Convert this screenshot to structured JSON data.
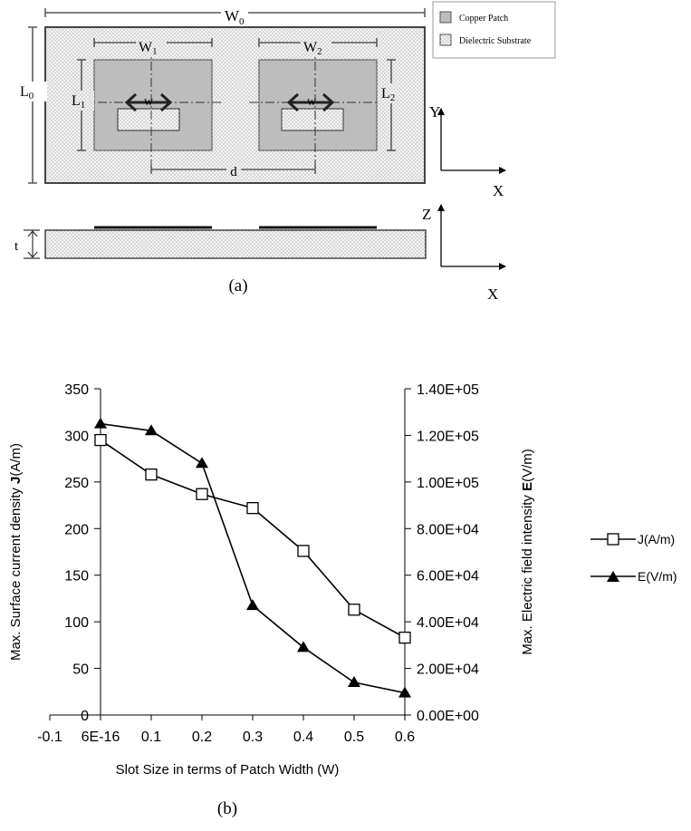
{
  "figure_a": {
    "caption": "(a)",
    "legend": [
      {
        "label": "Copper Patch",
        "fill": "#bdbdbd"
      },
      {
        "label": "Dielectric Substrate",
        "fill": "#ececec"
      }
    ],
    "dims": {
      "W0_main": "W",
      "W0_sub": "0",
      "W1_main": "W",
      "W1_sub": "1",
      "W2_main": "W",
      "W2_sub": "2",
      "L0_main": "L",
      "L0_sub": "0",
      "L1_main": "L",
      "L1_sub": "1",
      "L2_main": "L",
      "L2_sub": "2",
      "w1": "w",
      "w2": "w",
      "d": "d",
      "t": "t"
    },
    "axes_top": {
      "y": "Y",
      "x": "X"
    },
    "axes_bottom": {
      "z": "Z",
      "x": "X"
    }
  },
  "figure_b": {
    "caption": "(b)",
    "xlabel": "Slot Size in terms of Patch Width (W)",
    "ylabel_left_pre": "Max. Surface current density ",
    "ylabel_left_bold": "J",
    "ylabel_left_post": "(A/m)",
    "ylabel_right_pre": "Max. Electric field intensity ",
    "ylabel_right_bold": "E",
    "ylabel_right_post": "(V/m)"
  },
  "chart_data": {
    "type": "line",
    "x_tick_labels": [
      "-0.1",
      "6E-16",
      "0.1",
      "0.2",
      "0.3",
      "0.4",
      "0.5",
      "0.6"
    ],
    "xlim": [
      -0.1,
      0.6
    ],
    "x": [
      0,
      0.1,
      0.2,
      0.3,
      0.4,
      0.5,
      0.6
    ],
    "left_axis": {
      "ylim": [
        0,
        350
      ],
      "ticks": [
        "0",
        "50",
        "100",
        "150",
        "200",
        "250",
        "300",
        "350"
      ]
    },
    "right_axis": {
      "ylim": [
        0,
        140000
      ],
      "ticks": [
        "0.00E+00",
        "2.00E+04",
        "4.00E+04",
        "6.00E+04",
        "8.00E+04",
        "1.00E+05",
        "1.20E+05",
        "1.40E+05"
      ]
    },
    "series": [
      {
        "name": "J(A/m)",
        "axis": "left",
        "marker": "square-open",
        "color": "#000000",
        "values": [
          295,
          258,
          237,
          222,
          176,
          113,
          83
        ]
      },
      {
        "name": "E(V/m)",
        "axis": "right",
        "marker": "triangle-filled",
        "color": "#000000",
        "values": [
          125000,
          122000,
          108000,
          47000,
          29000,
          14000,
          9500
        ]
      }
    ],
    "legend_position": "right",
    "grid": false
  }
}
